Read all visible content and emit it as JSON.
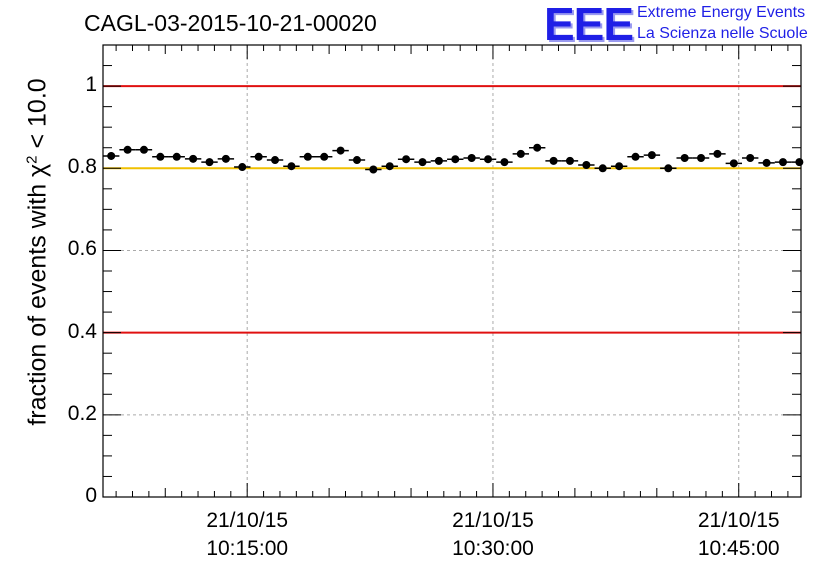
{
  "header": {
    "title": "CAGL-03-2015-10-21-00020",
    "logo_mark": "EEE",
    "logo_line1": "Extreme Energy Events",
    "logo_line2": "La Scienza nelle Scuole"
  },
  "colors": {
    "reference_red": "#e01010",
    "reference_yellow": "#f0c000",
    "markers": "#000000",
    "grid": "#aaaaaa"
  },
  "chart_data": {
    "type": "scatter",
    "title": "CAGL-03-2015-10-21-00020",
    "ylabel": "fraction of events with χ",
    "ylabel_sup": "2",
    "ylabel_tail": " < 10.0",
    "ylim": [
      0,
      1.1
    ],
    "yticks": [
      0,
      0.2,
      0.4,
      0.6,
      0.8,
      1
    ],
    "ytick_labels": [
      "0",
      "0.2",
      "0.4",
      "0.6",
      "0.8",
      "1"
    ],
    "xlim_minutes": [
      6.2,
      48.8
    ],
    "xticks_minutes": [
      15,
      30,
      45
    ],
    "xtick_labels": [
      {
        "date": "21/10/15",
        "time": "10:15:00"
      },
      {
        "date": "21/10/15",
        "time": "10:30:00"
      },
      {
        "date": "21/10/15",
        "time": "10:45:00"
      }
    ],
    "grid": true,
    "reference_lines": [
      {
        "y": 1.0,
        "color": "red"
      },
      {
        "y": 0.8,
        "color": "yellow"
      },
      {
        "y": 0.4,
        "color": "red"
      }
    ],
    "bin_width_minutes": 1,
    "series": [
      {
        "x_minutes": [
          6.7,
          7.7,
          8.7,
          9.7,
          10.7,
          11.7,
          12.7,
          13.7,
          14.7,
          15.7,
          16.7,
          17.7,
          18.7,
          19.7,
          20.7,
          21.7,
          22.7,
          23.7,
          24.7,
          25.7,
          26.7,
          27.7,
          28.7,
          29.7,
          30.7,
          31.7,
          32.7,
          33.7,
          34.7,
          35.7,
          36.7,
          37.7,
          38.7,
          39.7,
          40.7,
          41.7,
          42.7,
          43.7,
          44.7,
          45.7,
          46.7,
          47.7,
          48.7
        ],
        "y": [
          0.83,
          0.845,
          0.845,
          0.828,
          0.828,
          0.823,
          0.815,
          0.823,
          0.803,
          0.828,
          0.82,
          0.805,
          0.828,
          0.828,
          0.843,
          0.82,
          0.797,
          0.805,
          0.822,
          0.815,
          0.818,
          0.822,
          0.825,
          0.822,
          0.815,
          0.835,
          0.85,
          0.818,
          0.818,
          0.808,
          0.8,
          0.805,
          0.828,
          0.832,
          0.8,
          0.825,
          0.825,
          0.835,
          0.812,
          0.825,
          0.813,
          0.815,
          0.815
        ],
        "yerr": [
          0.009,
          0.009,
          0.009,
          0.009,
          0.009,
          0.009,
          0.009,
          0.009,
          0.009,
          0.009,
          0.009,
          0.009,
          0.009,
          0.009,
          0.009,
          0.009,
          0.009,
          0.009,
          0.009,
          0.009,
          0.009,
          0.009,
          0.009,
          0.009,
          0.009,
          0.009,
          0.009,
          0.009,
          0.009,
          0.009,
          0.009,
          0.009,
          0.009,
          0.009,
          0.009,
          0.009,
          0.009,
          0.009,
          0.009,
          0.009,
          0.009,
          0.009,
          0.009
        ]
      }
    ]
  }
}
